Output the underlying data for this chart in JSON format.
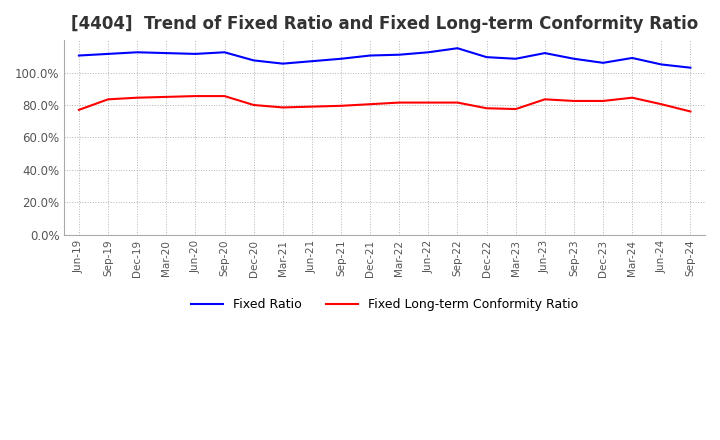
{
  "title": "[4404]  Trend of Fixed Ratio and Fixed Long-term Conformity Ratio",
  "title_fontsize": 12,
  "ylim": [
    0,
    120
  ],
  "yticks": [
    0,
    20,
    40,
    60,
    80,
    100
  ],
  "ytick_labels": [
    "0.0%",
    "20.0%",
    "40.0%",
    "60.0%",
    "80.0%",
    "100.0%"
  ],
  "background_color": "#ffffff",
  "plot_bg_color": "#ffffff",
  "x_labels": [
    "Jun-19",
    "Sep-19",
    "Dec-19",
    "Mar-20",
    "Jun-20",
    "Sep-20",
    "Dec-20",
    "Mar-21",
    "Jun-21",
    "Sep-21",
    "Dec-21",
    "Mar-22",
    "Jun-22",
    "Sep-22",
    "Dec-22",
    "Mar-23",
    "Jun-23",
    "Sep-23",
    "Dec-23",
    "Mar-24",
    "Jun-24",
    "Sep-24"
  ],
  "fixed_ratio": [
    110.5,
    111.5,
    112.5,
    112.0,
    111.5,
    112.5,
    107.5,
    105.5,
    107.0,
    108.5,
    110.5,
    111.0,
    112.5,
    115.0,
    109.5,
    108.5,
    112.0,
    108.5,
    106.0,
    109.0,
    105.0,
    103.0
  ],
  "fixed_lt_ratio": [
    77.0,
    83.5,
    84.5,
    85.0,
    85.5,
    85.5,
    80.0,
    78.5,
    79.0,
    79.5,
    80.5,
    81.5,
    81.5,
    81.5,
    78.0,
    77.5,
    83.5,
    82.5,
    82.5,
    84.5,
    80.5,
    76.0
  ],
  "fixed_ratio_color": "#0000ff",
  "fixed_lt_ratio_color": "#ff0000",
  "line_width": 1.5,
  "legend_fixed_ratio": "Fixed Ratio",
  "legend_fixed_lt_ratio": "Fixed Long-term Conformity Ratio",
  "grid_color": "#aaaaaa",
  "title_color": "#333333"
}
